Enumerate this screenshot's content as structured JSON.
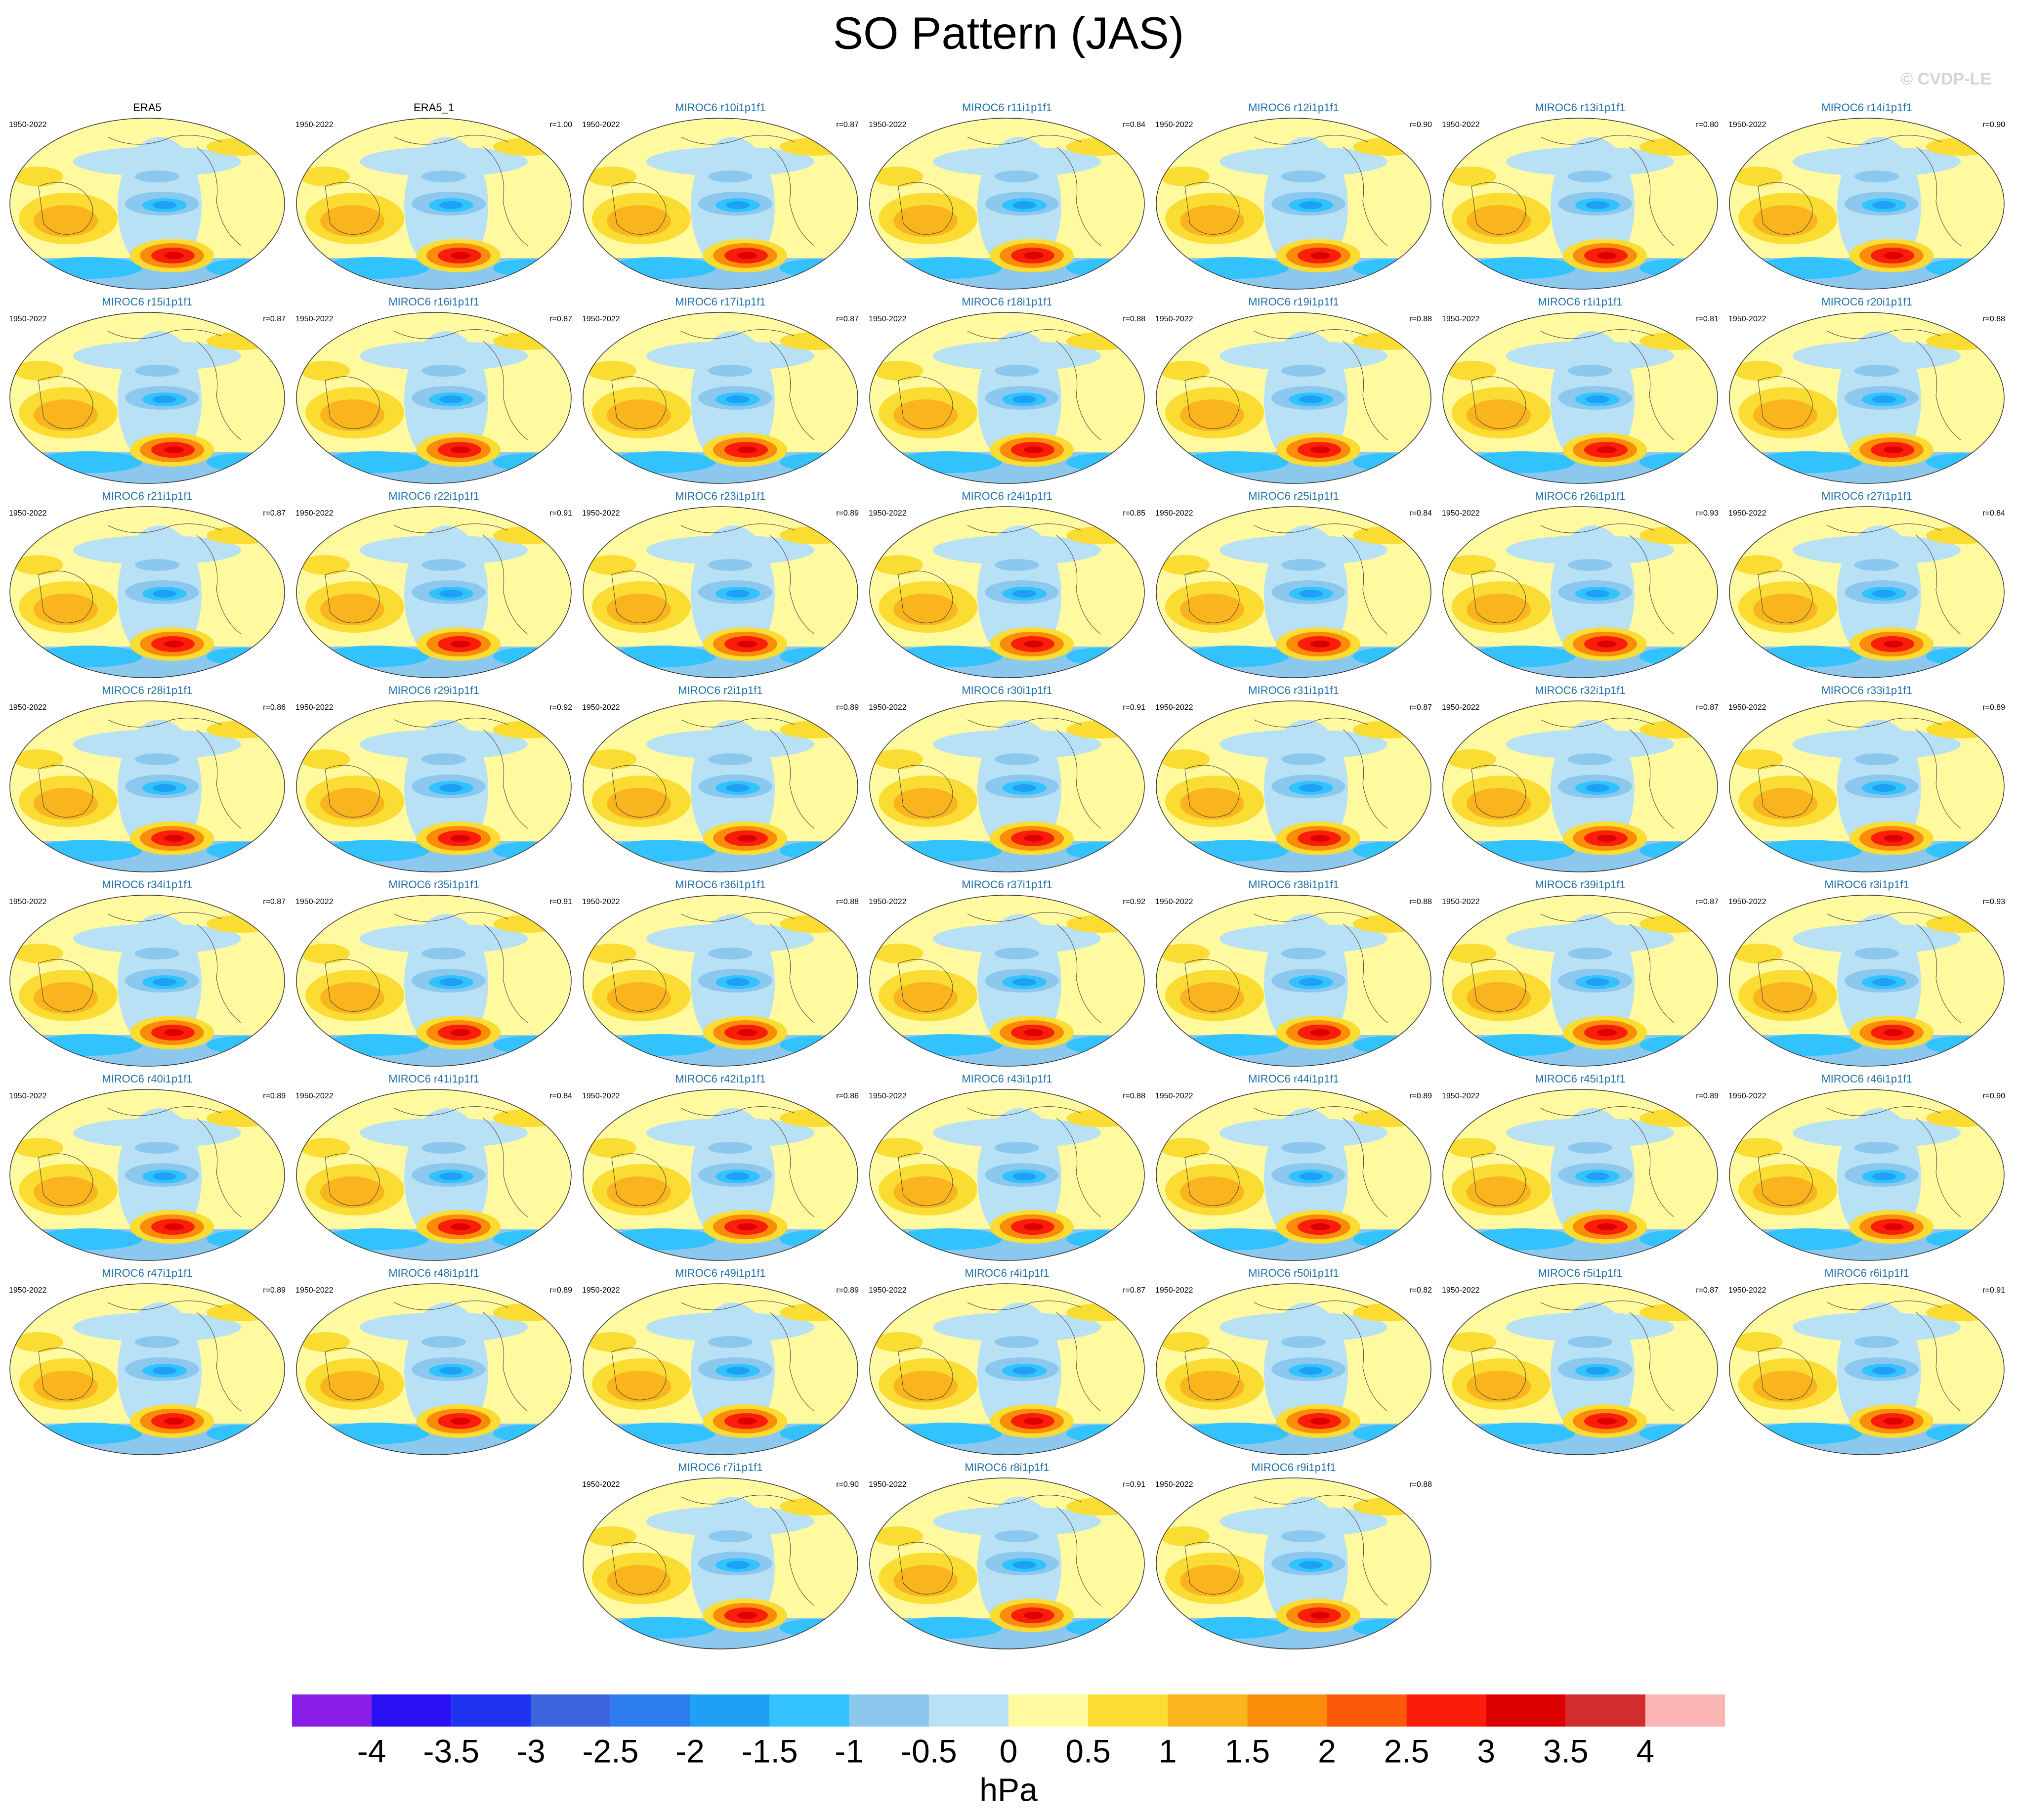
{
  "title": "SO Pattern (JAS)",
  "watermark": "© CVDP-LE",
  "panels": [
    {
      "title": "ERA5",
      "title_color": "#000000",
      "period": "1950-2022"
    },
    {
      "title": "ERA5_1",
      "title_color": "#000000",
      "period": "1950-2022",
      "corr": "r=1.00"
    },
    {
      "title": "MIROC6 r10i1p1f1",
      "title_color": "#1f6fa8",
      "period": "1950-2022",
      "corr": "r=0.87"
    },
    {
      "title": "MIROC6 r11i1p1f1",
      "title_color": "#1f6fa8",
      "period": "1950-2022",
      "corr": "r=0.84"
    },
    {
      "title": "MIROC6 r12i1p1f1",
      "title_color": "#1f6fa8",
      "period": "1950-2022",
      "corr": "r=0.90"
    },
    {
      "title": "MIROC6 r13i1p1f1",
      "title_color": "#1f6fa8",
      "period": "1950-2022",
      "corr": "r=0.80"
    },
    {
      "title": "MIROC6 r14i1p1f1",
      "title_color": "#1f6fa8",
      "period": "1950-2022",
      "corr": "r=0.90"
    },
    {
      "title": "MIROC6 r15i1p1f1",
      "title_color": "#1f6fa8",
      "period": "1950-2022",
      "corr": "r=0.87"
    },
    {
      "title": "MIROC6 r16i1p1f1",
      "title_color": "#1f6fa8",
      "period": "1950-2022",
      "corr": "r=0.87"
    },
    {
      "title": "MIROC6 r17i1p1f1",
      "title_color": "#1f6fa8",
      "period": "1950-2022",
      "corr": "r=0.87"
    },
    {
      "title": "MIROC6 r18i1p1f1",
      "title_color": "#1f6fa8",
      "period": "1950-2022",
      "corr": "r=0.88"
    },
    {
      "title": "MIROC6 r19i1p1f1",
      "title_color": "#1f6fa8",
      "period": "1950-2022",
      "corr": "r=0.88"
    },
    {
      "title": "MIROC6 r1i1p1f1",
      "title_color": "#1f6fa8",
      "period": "1950-2022",
      "corr": "r=0.81"
    },
    {
      "title": "MIROC6 r20i1p1f1",
      "title_color": "#1f6fa8",
      "period": "1950-2022",
      "corr": "r=0.88"
    },
    {
      "title": "MIROC6 r21i1p1f1",
      "title_color": "#1f6fa8",
      "period": "1950-2022",
      "corr": "r=0.87"
    },
    {
      "title": "MIROC6 r22i1p1f1",
      "title_color": "#1f6fa8",
      "period": "1950-2022",
      "corr": "r=0.91"
    },
    {
      "title": "MIROC6 r23i1p1f1",
      "title_color": "#1f6fa8",
      "period": "1950-2022",
      "corr": "r=0.89"
    },
    {
      "title": "MIROC6 r24i1p1f1",
      "title_color": "#1f6fa8",
      "period": "1950-2022",
      "corr": "r=0.85"
    },
    {
      "title": "MIROC6 r25i1p1f1",
      "title_color": "#1f6fa8",
      "period": "1950-2022",
      "corr": "r=0.84"
    },
    {
      "title": "MIROC6 r26i1p1f1",
      "title_color": "#1f6fa8",
      "period": "1950-2022",
      "corr": "r=0.93"
    },
    {
      "title": "MIROC6 r27i1p1f1",
      "title_color": "#1f6fa8",
      "period": "1950-2022",
      "corr": "r=0.84"
    },
    {
      "title": "MIROC6 r28i1p1f1",
      "title_color": "#1f6fa8",
      "period": "1950-2022",
      "corr": "r=0.86"
    },
    {
      "title": "MIROC6 r29i1p1f1",
      "title_color": "#1f6fa8",
      "period": "1950-2022",
      "corr": "r=0.92"
    },
    {
      "title": "MIROC6 r2i1p1f1",
      "title_color": "#1f6fa8",
      "period": "1950-2022",
      "corr": "r=0.89"
    },
    {
      "title": "MIROC6 r30i1p1f1",
      "title_color": "#1f6fa8",
      "period": "1950-2022",
      "corr": "r=0.91"
    },
    {
      "title": "MIROC6 r31i1p1f1",
      "title_color": "#1f6fa8",
      "period": "1950-2022",
      "corr": "r=0.87"
    },
    {
      "title": "MIROC6 r32i1p1f1",
      "title_color": "#1f6fa8",
      "period": "1950-2022",
      "corr": "r=0.87"
    },
    {
      "title": "MIROC6 r33i1p1f1",
      "title_color": "#1f6fa8",
      "period": "1950-2022",
      "corr": "r=0.89"
    },
    {
      "title": "MIROC6 r34i1p1f1",
      "title_color": "#1f6fa8",
      "period": "1950-2022",
      "corr": "r=0.87"
    },
    {
      "title": "MIROC6 r35i1p1f1",
      "title_color": "#1f6fa8",
      "period": "1950-2022",
      "corr": "r=0.91"
    },
    {
      "title": "MIROC6 r36i1p1f1",
      "title_color": "#1f6fa8",
      "period": "1950-2022",
      "corr": "r=0.88"
    },
    {
      "title": "MIROC6 r37i1p1f1",
      "title_color": "#1f6fa8",
      "period": "1950-2022",
      "corr": "r=0.92"
    },
    {
      "title": "MIROC6 r38i1p1f1",
      "title_color": "#1f6fa8",
      "period": "1950-2022",
      "corr": "r=0.88"
    },
    {
      "title": "MIROC6 r39i1p1f1",
      "title_color": "#1f6fa8",
      "period": "1950-2022",
      "corr": "r=0.87"
    },
    {
      "title": "MIROC6 r3i1p1f1",
      "title_color": "#1f6fa8",
      "period": "1950-2022",
      "corr": "r=0.93"
    },
    {
      "title": "MIROC6 r40i1p1f1",
      "title_color": "#1f6fa8",
      "period": "1950-2022",
      "corr": "r=0.89"
    },
    {
      "title": "MIROC6 r41i1p1f1",
      "title_color": "#1f6fa8",
      "period": "1950-2022",
      "corr": "r=0.84"
    },
    {
      "title": "MIROC6 r42i1p1f1",
      "title_color": "#1f6fa8",
      "period": "1950-2022",
      "corr": "r=0.86"
    },
    {
      "title": "MIROC6 r43i1p1f1",
      "title_color": "#1f6fa8",
      "period": "1950-2022",
      "corr": "r=0.88"
    },
    {
      "title": "MIROC6 r44i1p1f1",
      "title_color": "#1f6fa8",
      "period": "1950-2022",
      "corr": "r=0.89"
    },
    {
      "title": "MIROC6 r45i1p1f1",
      "title_color": "#1f6fa8",
      "period": "1950-2022",
      "corr": "r=0.89"
    },
    {
      "title": "MIROC6 r46i1p1f1",
      "title_color": "#1f6fa8",
      "period": "1950-2022",
      "corr": "r=0.90"
    },
    {
      "title": "MIROC6 r47i1p1f1",
      "title_color": "#1f6fa8",
      "period": "1950-2022",
      "corr": "r=0.89"
    },
    {
      "title": "MIROC6 r48i1p1f1",
      "title_color": "#1f6fa8",
      "period": "1950-2022",
      "corr": "r=0.89"
    },
    {
      "title": "MIROC6 r49i1p1f1",
      "title_color": "#1f6fa8",
      "period": "1950-2022",
      "corr": "r=0.89"
    },
    {
      "title": "MIROC6 r4i1p1f1",
      "title_color": "#1f6fa8",
      "period": "1950-2022",
      "corr": "r=0.87"
    },
    {
      "title": "MIROC6 r50i1p1f1",
      "title_color": "#1f6fa8",
      "period": "1950-2022",
      "corr": "r=0.82"
    },
    {
      "title": "MIROC6 r5i1p1f1",
      "title_color": "#1f6fa8",
      "period": "1950-2022",
      "corr": "r=0.87"
    },
    {
      "title": "MIROC6 r6i1p1f1",
      "title_color": "#1f6fa8",
      "period": "1950-2022",
      "corr": "r=0.91"
    },
    {
      "title": "MIROC6 r7i1p1f1",
      "title_color": "#1f6fa8",
      "period": "1950-2022",
      "corr": "r=0.90"
    },
    {
      "title": "MIROC6 r8i1p1f1",
      "title_color": "#1f6fa8",
      "period": "1950-2022",
      "corr": "r=0.91"
    },
    {
      "title": "MIROC6 r9i1p1f1",
      "title_color": "#1f6fa8",
      "period": "1950-2022",
      "corr": "r=0.88"
    }
  ],
  "colorbar": {
    "label": "hPa",
    "colors": [
      "#8a1ee8",
      "#2a10f5",
      "#1e32f0",
      "#3c64dc",
      "#2d7df0",
      "#1ea0f5",
      "#32c3ff",
      "#8cc8ee",
      "#b9e1f5",
      "#fffaa0",
      "#fadc32",
      "#fab41e",
      "#fa8c0a",
      "#fa5a0a",
      "#fa1e0a",
      "#dc0000",
      "#d22d2d",
      "#fab4b4"
    ],
    "ticks": [
      -4,
      -3.5,
      -3,
      -2.5,
      -2,
      -1.5,
      -1,
      -0.5,
      0,
      0.5,
      1,
      1.5,
      2,
      2.5,
      3,
      3.5,
      4
    ]
  }
}
